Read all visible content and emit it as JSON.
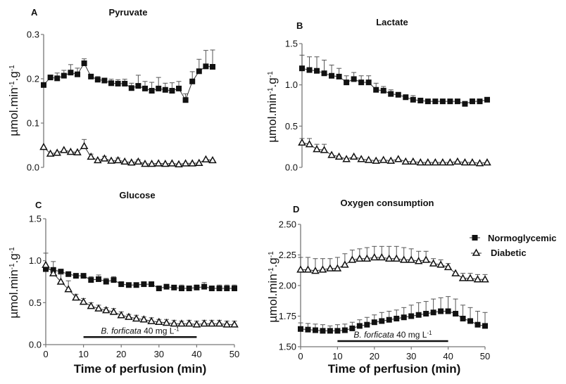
{
  "figure": {
    "legend": {
      "placement": "right of panel D, top",
      "entries": [
        {
          "label": "Normoglycemic",
          "marker": "filled-square"
        },
        {
          "label": "Diabetic",
          "marker": "open-triangle"
        }
      ]
    },
    "colors": {
      "line": "#333333",
      "marker": "#111111",
      "axis": "#777777",
      "errorbar": "#555555"
    }
  },
  "chart_data": [
    {
      "id": "A",
      "type": "line",
      "letter": "A",
      "title": "Pyruvate",
      "xlabel": "",
      "ylabel": "µmol.min⁻¹.g⁻¹",
      "x_axis_visible": false,
      "xlim": [
        0,
        50
      ],
      "ylim": [
        0,
        0.3
      ],
      "yticks": [
        0.0,
        0.1,
        0.2,
        0.3
      ],
      "ytick_labels": [
        "0.0",
        "0.1",
        "0.2",
        "0.3"
      ],
      "xticks": [],
      "xtick_labels": [],
      "grid": false,
      "annotation": null,
      "x": [
        0,
        2,
        4,
        6,
        8,
        10,
        12,
        14,
        16,
        18,
        20,
        22,
        24,
        26,
        28,
        30,
        32,
        34,
        36,
        38,
        40,
        42,
        44,
        46,
        48,
        50
      ],
      "series": [
        {
          "name": "Normoglycemic",
          "values": [
            0.186,
            0.203,
            0.201,
            0.207,
            0.214,
            0.21,
            0.235,
            0.205,
            0.198,
            0.196,
            0.19,
            0.189,
            0.189,
            0.179,
            0.184,
            0.178,
            0.173,
            0.178,
            0.175,
            0.173,
            0.178,
            0.152,
            0.194,
            0.217,
            0.228,
            0.227
          ],
          "errors": [
            0.0,
            0.0,
            0.012,
            0.012,
            0.018,
            0.014,
            0.01,
            0.003,
            0.007,
            0.0,
            0.009,
            0.009,
            0.01,
            0.011,
            0.024,
            0.016,
            0.019,
            0.025,
            0.015,
            0.018,
            0.016,
            0.014,
            0.022,
            0.027,
            0.036,
            0.038
          ]
        },
        {
          "name": "Diabetic",
          "values": [
            0.046,
            0.031,
            0.033,
            0.039,
            0.035,
            0.034,
            0.048,
            0.024,
            0.016,
            0.02,
            0.015,
            0.016,
            0.013,
            0.011,
            0.013,
            0.008,
            0.008,
            0.009,
            0.008,
            0.009,
            0.007,
            0.009,
            0.009,
            0.01,
            0.018,
            0.016
          ],
          "errors": [
            0.0,
            0.0,
            0.0,
            0.0,
            0.0,
            0.0,
            0.015,
            0.006,
            0.0,
            0.005,
            0.0,
            0.005,
            0.0,
            0.0,
            0.004,
            0.0,
            0.0,
            0.0,
            0.0,
            0.0,
            0.0,
            0.0,
            0.0,
            0.0,
            0.0,
            0.0
          ]
        }
      ]
    },
    {
      "id": "B",
      "type": "line",
      "letter": "B",
      "title": "Lactate",
      "xlabel": "",
      "ylabel": "µmol.min⁻¹.g⁻¹",
      "x_axis_visible": false,
      "xlim": [
        0,
        50
      ],
      "ylim": [
        0,
        1.5
      ],
      "yticks": [
        0.0,
        0.5,
        1.0,
        1.5
      ],
      "ytick_labels": [
        "0.0",
        "0.5",
        "1.0",
        "1.5"
      ],
      "xticks": [],
      "xtick_labels": [],
      "grid": false,
      "annotation": null,
      "x": [
        0,
        2,
        4,
        6,
        8,
        10,
        12,
        14,
        16,
        18,
        20,
        22,
        24,
        26,
        28,
        30,
        32,
        34,
        36,
        38,
        40,
        42,
        44,
        46,
        48,
        50
      ],
      "series": [
        {
          "name": "Normoglycemic",
          "values": [
            1.2,
            1.18,
            1.17,
            1.14,
            1.11,
            1.1,
            1.03,
            1.07,
            1.03,
            1.03,
            0.94,
            0.93,
            0.89,
            0.88,
            0.85,
            0.82,
            0.81,
            0.8,
            0.8,
            0.8,
            0.8,
            0.8,
            0.77,
            0.8,
            0.8,
            0.82
          ],
          "errors": [
            0.16,
            0.16,
            0.17,
            0.16,
            0.13,
            0.1,
            0.08,
            0.08,
            0.08,
            0.08,
            0.08,
            0.05,
            0.05,
            0.0,
            0.03,
            0.05,
            0.0,
            0.0,
            0.0,
            0.0,
            0.0,
            0.0,
            0.0,
            0.03,
            0.0,
            0.0
          ]
        },
        {
          "name": "Diabetic",
          "values": [
            0.3,
            0.28,
            0.22,
            0.21,
            0.15,
            0.13,
            0.1,
            0.13,
            0.1,
            0.09,
            0.08,
            0.09,
            0.08,
            0.1,
            0.07,
            0.07,
            0.06,
            0.06,
            0.06,
            0.06,
            0.06,
            0.07,
            0.06,
            0.06,
            0.05,
            0.06
          ],
          "errors": [
            0.05,
            0.07,
            0.06,
            0.07,
            0.0,
            0.0,
            0.0,
            0.0,
            0.0,
            0.0,
            0.0,
            0.0,
            0.0,
            0.0,
            0.0,
            0.0,
            0.0,
            0.0,
            0.0,
            0.0,
            0.0,
            0.0,
            0.0,
            0.0,
            0.0,
            0.0
          ]
        }
      ]
    },
    {
      "id": "C",
      "type": "line",
      "letter": "C",
      "title": "Glucose",
      "xlabel": "Time of perfusion (min)",
      "ylabel": "µmol.min⁻¹.g⁻¹",
      "x_axis_visible": true,
      "xlim": [
        0,
        50
      ],
      "ylim": [
        0,
        1.5
      ],
      "yticks": [
        0.0,
        0.5,
        1.0,
        1.5
      ],
      "ytick_labels": [
        "0.0",
        "0.5",
        "1.0",
        "1.5"
      ],
      "xticks": [
        0,
        10,
        20,
        30,
        40,
        50
      ],
      "xtick_labels": [
        "0",
        "10",
        "20",
        "30",
        "40",
        "50"
      ],
      "grid": false,
      "annotation": {
        "text_italic": "B. forficata",
        "text_rest": " 40 mg L",
        "superscript": "-1",
        "x_start": 10,
        "x_end": 40,
        "y": 0.09
      },
      "x": [
        0,
        2,
        4,
        6,
        8,
        10,
        12,
        14,
        16,
        18,
        20,
        22,
        24,
        26,
        28,
        30,
        32,
        34,
        36,
        38,
        40,
        42,
        44,
        46,
        48,
        50
      ],
      "series": [
        {
          "name": "Normoglycemic",
          "values": [
            0.9,
            0.89,
            0.87,
            0.84,
            0.82,
            0.82,
            0.77,
            0.78,
            0.75,
            0.77,
            0.72,
            0.71,
            0.71,
            0.72,
            0.72,
            0.67,
            0.69,
            0.68,
            0.67,
            0.67,
            0.68,
            0.69,
            0.67,
            0.67,
            0.67,
            0.67
          ],
          "errors": [
            0.0,
            0.1,
            0.0,
            0.0,
            0.0,
            0.0,
            0.04,
            0.05,
            0.04,
            0.04,
            0.0,
            0.0,
            0.0,
            0.0,
            0.0,
            0.0,
            0.0,
            0.02,
            0.04,
            0.0,
            0.03,
            0.05,
            0.0,
            0.04,
            0.04,
            0.04
          ]
        },
        {
          "name": "Diabetic",
          "values": [
            0.95,
            0.85,
            0.75,
            0.66,
            0.56,
            0.51,
            0.46,
            0.43,
            0.41,
            0.39,
            0.35,
            0.33,
            0.31,
            0.3,
            0.28,
            0.27,
            0.26,
            0.25,
            0.25,
            0.25,
            0.24,
            0.25,
            0.25,
            0.25,
            0.24,
            0.24
          ],
          "errors": [
            0.14,
            0.0,
            0.09,
            0.1,
            0.04,
            0.04,
            0.04,
            0.04,
            0.03,
            0.04,
            0.04,
            0.03,
            0.04,
            0.03,
            0.04,
            0.03,
            0.04,
            0.04,
            0.03,
            0.04,
            0.04,
            0.04,
            0.04,
            0.04,
            0.04,
            0.04
          ]
        }
      ]
    },
    {
      "id": "D",
      "type": "line",
      "letter": "D",
      "title": "Oxygen consumption",
      "xlabel": "Time of perfusion (min)",
      "ylabel": "µmol.min⁻¹.g⁻¹",
      "x_axis_visible": true,
      "xlim": [
        0,
        50
      ],
      "ylim": [
        1.5,
        2.5
      ],
      "yticks": [
        1.5,
        1.75,
        2.0,
        2.25,
        2.5
      ],
      "ytick_labels": [
        "1.50",
        "1.75",
        "2.00",
        "2.25",
        "2.50"
      ],
      "xticks": [
        0,
        10,
        20,
        30,
        40,
        50
      ],
      "xtick_labels": [
        "0",
        "10",
        "20",
        "30",
        "40",
        "50"
      ],
      "grid": false,
      "annotation": {
        "text_italic": "B. forficata",
        "text_rest": " 40 mg L",
        "superscript": "-1",
        "x_start": 10,
        "x_end": 40,
        "y": 1.546
      },
      "x": [
        0,
        2,
        4,
        6,
        8,
        10,
        12,
        14,
        16,
        18,
        20,
        22,
        24,
        26,
        28,
        30,
        32,
        34,
        36,
        38,
        40,
        42,
        44,
        46,
        48,
        50
      ],
      "series": [
        {
          "name": "Normoglycemic",
          "values": [
            1.645,
            1.64,
            1.635,
            1.63,
            1.63,
            1.63,
            1.635,
            1.65,
            1.67,
            1.68,
            1.7,
            1.71,
            1.72,
            1.73,
            1.74,
            1.75,
            1.76,
            1.77,
            1.78,
            1.79,
            1.79,
            1.77,
            1.73,
            1.71,
            1.68,
            1.67
          ],
          "errors": [
            0.05,
            0.05,
            0.05,
            0.05,
            0.04,
            0.05,
            0.05,
            0.05,
            0.05,
            0.06,
            0.06,
            0.07,
            0.07,
            0.07,
            0.08,
            0.09,
            0.1,
            0.1,
            0.11,
            0.11,
            0.12,
            0.12,
            0.11,
            0.11,
            0.11,
            0.11
          ]
        },
        {
          "name": "Diabetic",
          "values": [
            2.13,
            2.13,
            2.12,
            2.13,
            2.14,
            2.14,
            2.17,
            2.21,
            2.22,
            2.22,
            2.23,
            2.23,
            2.22,
            2.22,
            2.21,
            2.21,
            2.2,
            2.21,
            2.18,
            2.17,
            2.15,
            2.1,
            2.06,
            2.06,
            2.05,
            2.05
          ],
          "errors": [
            0.1,
            0.1,
            0.1,
            0.09,
            0.08,
            0.09,
            0.09,
            0.08,
            0.08,
            0.09,
            0.09,
            0.09,
            0.1,
            0.1,
            0.1,
            0.09,
            0.08,
            0.07,
            0.04,
            0.04,
            0.03,
            0.0,
            0.04,
            0.04,
            0.04,
            0.04
          ]
        }
      ]
    }
  ]
}
